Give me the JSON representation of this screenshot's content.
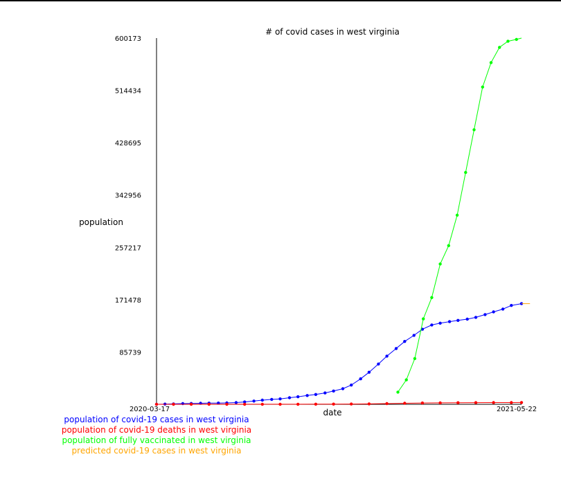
{
  "chart_data": {
    "type": "line",
    "title": "# of covid cases in west virginia",
    "xlabel": "date",
    "ylabel": "population",
    "x_tick_labels": [
      "2020-03-17",
      "2021-05-22"
    ],
    "y_ticks": [
      85739,
      171478,
      257217,
      342956,
      428695,
      514434,
      600173
    ],
    "ylim": [
      0,
      600173
    ],
    "xlim": [
      "2020-03-17",
      "2021-05-22"
    ],
    "grid": false,
    "legend_placement": "bottom-left",
    "series": [
      {
        "name": "population of covid-19 cases in west virginia",
        "color": "#0000ff",
        "x": [
          "2020-03-17",
          "2020-03-27",
          "2020-04-06",
          "2020-04-17",
          "2020-04-27",
          "2020-05-08",
          "2020-05-18",
          "2020-05-29",
          "2020-06-08",
          "2020-06-19",
          "2020-06-29",
          "2020-07-10",
          "2020-07-20",
          "2020-07-31",
          "2020-08-10",
          "2020-08-21",
          "2020-08-31",
          "2020-09-11",
          "2020-09-21",
          "2020-10-02",
          "2020-10-12",
          "2020-10-23",
          "2020-11-02",
          "2020-11-13",
          "2020-11-23",
          "2020-12-04",
          "2020-12-14",
          "2020-12-25",
          "2021-01-04",
          "2021-01-15",
          "2021-01-25",
          "2021-02-05",
          "2021-02-15",
          "2021-02-26",
          "2021-03-08",
          "2021-03-19",
          "2021-03-29",
          "2021-04-09",
          "2021-04-19",
          "2021-04-30",
          "2021-05-10",
          "2021-05-22"
        ],
        "values": [
          0,
          300,
          700,
          1100,
          1400,
          1700,
          1900,
          2000,
          2300,
          2800,
          3900,
          5300,
          6800,
          8000,
          8900,
          10800,
          12400,
          14400,
          16100,
          18600,
          21800,
          25500,
          31500,
          41800,
          52500,
          66000,
          79000,
          91500,
          103000,
          113000,
          123000,
          130000,
          133000,
          135500,
          137500,
          139500,
          142500,
          147000,
          151500,
          156000,
          162000,
          165000
        ]
      },
      {
        "name": "population of covid-19 deaths in west virginia",
        "color": "#ff0000",
        "x": [
          "2020-03-17",
          "2020-04-06",
          "2020-04-27",
          "2020-05-18",
          "2020-06-08",
          "2020-06-29",
          "2020-07-20",
          "2020-08-10",
          "2020-08-31",
          "2020-09-21",
          "2020-10-12",
          "2020-11-02",
          "2020-11-23",
          "2020-12-14",
          "2021-01-04",
          "2021-01-25",
          "2021-02-15",
          "2021-03-08",
          "2021-03-29",
          "2021-04-19",
          "2021-05-10",
          "2021-05-22"
        ],
        "values": [
          0,
          30,
          60,
          80,
          90,
          100,
          110,
          130,
          160,
          200,
          300,
          400,
          700,
          1100,
          1700,
          2100,
          2400,
          2600,
          2700,
          2800,
          2850,
          2900
        ]
      },
      {
        "name": "population of fully vaccinated in west virginia",
        "color": "#00ff00",
        "x": [
          "2020-12-27",
          "2021-01-06",
          "2021-01-16",
          "2021-01-26",
          "2021-02-05",
          "2021-02-15",
          "2021-02-25",
          "2021-03-07",
          "2021-03-17",
          "2021-03-27",
          "2021-04-06",
          "2021-04-16",
          "2021-04-26",
          "2021-05-06",
          "2021-05-16",
          "2021-05-22"
        ],
        "values": [
          20000,
          40000,
          75000,
          140000,
          175000,
          230000,
          260000,
          310000,
          380000,
          450000,
          520000,
          560000,
          585000,
          595000,
          598000,
          600173
        ]
      },
      {
        "name": "predicted covid-19 cases in west virginia",
        "color": "#ffa500",
        "x": [
          "2021-05-22",
          "2021-06-01"
        ],
        "values": [
          165000,
          165000
        ]
      }
    ]
  }
}
